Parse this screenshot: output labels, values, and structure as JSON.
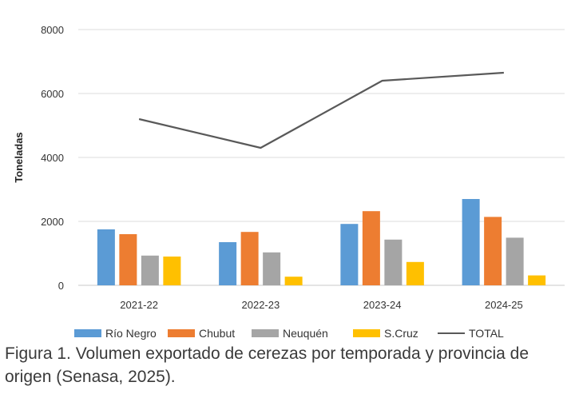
{
  "chart_data": {
    "type": "bar",
    "categories": [
      "2021-22",
      "2022-23",
      "2023-24",
      "2024-25"
    ],
    "series": [
      {
        "name": "Río Negro",
        "kind": "bar",
        "color": "#5B9BD5",
        "values": [
          1750,
          1350,
          1920,
          2700
        ]
      },
      {
        "name": "Chubut",
        "kind": "bar",
        "color": "#ED7D31",
        "values": [
          1600,
          1670,
          2320,
          2140
        ]
      },
      {
        "name": "Neuquén",
        "kind": "bar",
        "color": "#A5A5A5",
        "values": [
          930,
          1030,
          1430,
          1490
        ]
      },
      {
        "name": "S.Cruz",
        "kind": "bar",
        "color": "#FFC000",
        "values": [
          900,
          270,
          730,
          310
        ]
      },
      {
        "name": "TOTAL",
        "kind": "line",
        "color": "#595959",
        "values": [
          5200,
          4300,
          6400,
          6650
        ]
      }
    ],
    "title": "",
    "xlabel": "",
    "ylabel": "Toneladas",
    "ylim": [
      0,
      8000
    ],
    "yticks": [
      0,
      2000,
      4000,
      6000,
      8000
    ],
    "grid": true,
    "legend": "bottom"
  },
  "caption": "Figura 1. Volumen exportado de cerezas por temporada y provincia de origen (Senasa, 2025)."
}
